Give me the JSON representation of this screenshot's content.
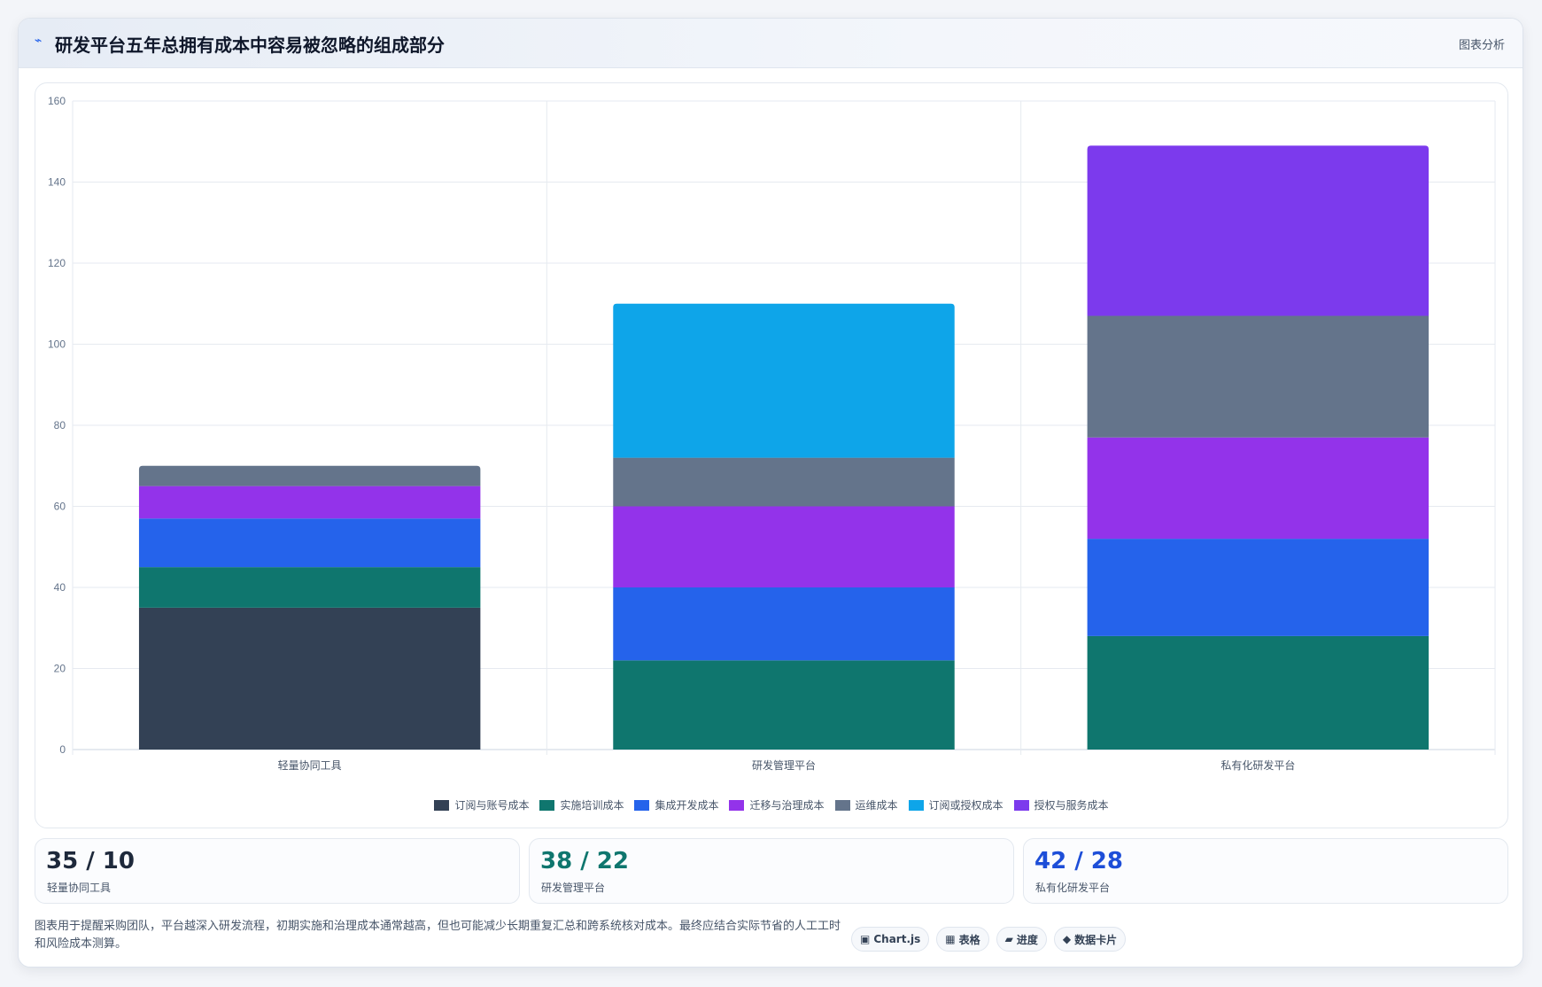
{
  "header": {
    "title": "研发平台五年总拥有成本中容易被忽略的组成部分",
    "action_label": "图表分析"
  },
  "chart_data": {
    "type": "bar",
    "stacked": true,
    "title": "",
    "xlabel": "",
    "ylabel": "",
    "categories": [
      "轻量协同工具",
      "研发管理平台",
      "私有化研发平台"
    ],
    "ylim": [
      0,
      160
    ],
    "yticks": [
      0,
      20,
      40,
      60,
      80,
      100,
      120,
      140,
      160
    ],
    "grid": true,
    "legend_position": "bottom",
    "series": [
      {
        "name": "订阅与账号成本",
        "color": "#334155",
        "values": [
          35,
          0,
          0
        ]
      },
      {
        "name": "实施培训成本",
        "color": "#0f766e",
        "values": [
          10,
          22,
          28
        ]
      },
      {
        "name": "集成开发成本",
        "color": "#2563eb",
        "values": [
          12,
          18,
          24
        ]
      },
      {
        "name": "迁移与治理成本",
        "color": "#9333ea",
        "values": [
          8,
          20,
          25
        ]
      },
      {
        "name": "运维成本",
        "color": "#64748b",
        "values": [
          5,
          12,
          30
        ]
      },
      {
        "name": "订阅或授权成本",
        "color": "#0ea5e9",
        "values": [
          0,
          38,
          0
        ]
      },
      {
        "name": "授权与服务成本",
        "color": "#7c3aed",
        "values": [
          0,
          0,
          42
        ]
      }
    ]
  },
  "stats": [
    {
      "value": "35 / 10",
      "label": "轻量协同工具",
      "color": "#1e293b"
    },
    {
      "value": "38 / 22",
      "label": "研发管理平台",
      "color": "#0f766e"
    },
    {
      "value": "42 / 28",
      "label": "私有化研发平台",
      "color": "#1d4ed8"
    }
  ],
  "footer": {
    "note": "图表用于提醒采购团队，平台越深入研发流程，初期实施和治理成本通常越高，但也可能减少长期重复汇总和跨系统核对成本。最终应结合实际节省的人工工时和风险成本测算。",
    "tags": [
      {
        "icon": "▣",
        "label": "Chart.js"
      },
      {
        "icon": "▦",
        "label": "表格"
      },
      {
        "icon": "▰",
        "label": "进度"
      },
      {
        "icon": "◆",
        "label": "数据卡片"
      }
    ]
  }
}
